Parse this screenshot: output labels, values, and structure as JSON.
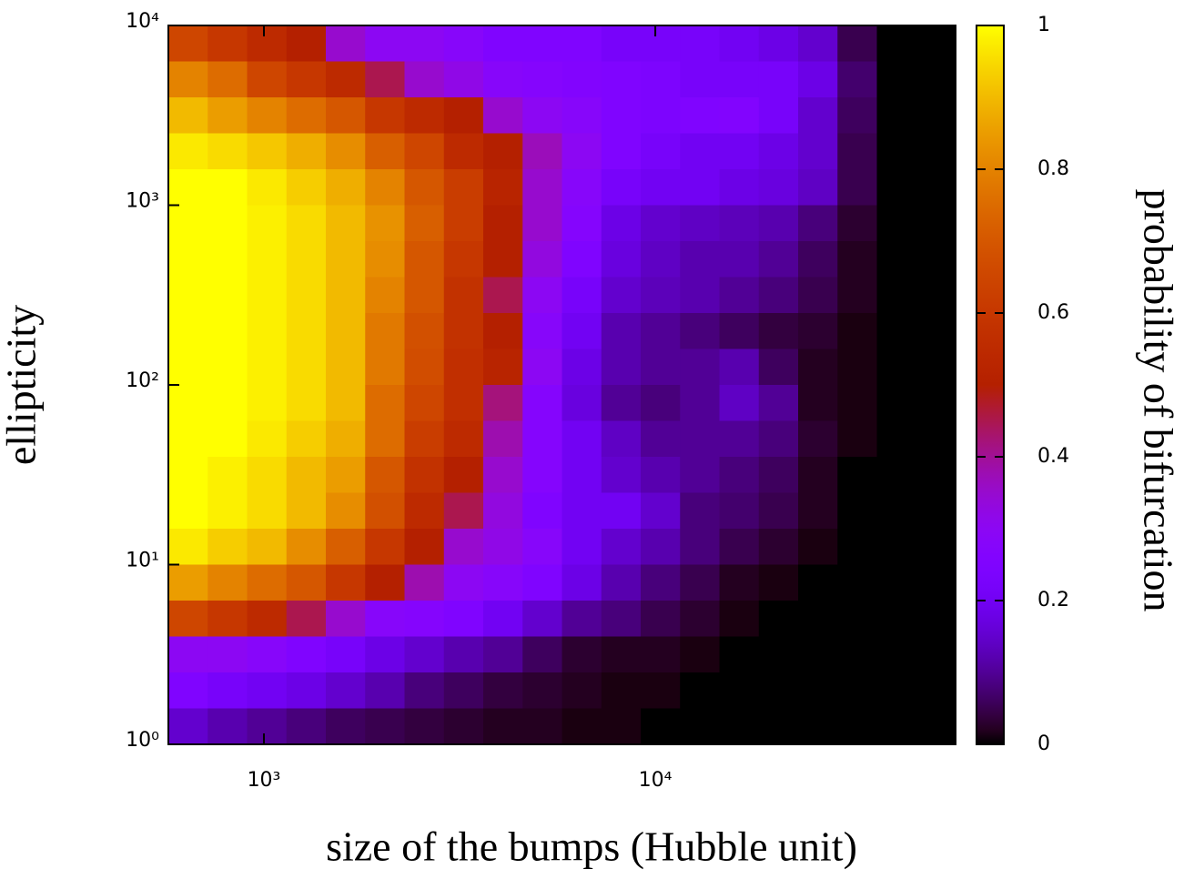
{
  "chart_data": {
    "type": "heatmap",
    "xlabel": "size of the bumps (Hubble unit)",
    "ylabel": "ellipticity",
    "colorbar_label": "probability of bifurcation",
    "xscale": "log",
    "yscale": "log",
    "xlim": [
      570,
      58500
    ],
    "ylim": [
      1,
      10000
    ],
    "xticks": [
      {
        "value": 1000,
        "label": "10³"
      },
      {
        "value": 10000,
        "label": "10⁴"
      }
    ],
    "yticks": [
      {
        "value": 1,
        "label": "10⁰"
      },
      {
        "value": 10,
        "label": "10¹"
      },
      {
        "value": 100,
        "label": "10²"
      },
      {
        "value": 1000,
        "label": "10³"
      },
      {
        "value": 10000,
        "label": "10⁴"
      }
    ],
    "colormap": "gnuplot",
    "zlim": [
      0,
      1
    ],
    "zticks": [
      0,
      {
        "value": 0.2,
        "label": "0.2"
      },
      {
        "value": 0.4,
        "label": "0.4"
      },
      {
        "value": 0.6,
        "label": "0.6"
      },
      {
        "value": 0.8,
        "label": "0.8"
      },
      1
    ],
    "z": [
      [
        0.65,
        0.6,
        0.55,
        0.5,
        0.35,
        0.3,
        0.3,
        0.28,
        0.25,
        0.25,
        0.25,
        0.22,
        0.22,
        0.22,
        0.2,
        0.18,
        0.15,
        0.05,
        0,
        0
      ],
      [
        0.8,
        0.75,
        0.65,
        0.6,
        0.55,
        0.45,
        0.35,
        0.32,
        0.28,
        0.27,
        0.26,
        0.25,
        0.24,
        0.22,
        0.22,
        0.22,
        0.18,
        0.07,
        0,
        0
      ],
      [
        0.9,
        0.85,
        0.8,
        0.75,
        0.7,
        0.6,
        0.55,
        0.5,
        0.35,
        0.3,
        0.28,
        0.25,
        0.24,
        0.25,
        0.26,
        0.22,
        0.15,
        0.06,
        0,
        0
      ],
      [
        0.97,
        0.95,
        0.92,
        0.88,
        0.82,
        0.72,
        0.65,
        0.55,
        0.5,
        0.37,
        0.3,
        0.25,
        0.22,
        0.2,
        0.2,
        0.18,
        0.15,
        0.05,
        0,
        0
      ],
      [
        1,
        1,
        0.97,
        0.93,
        0.88,
        0.8,
        0.7,
        0.62,
        0.52,
        0.35,
        0.28,
        0.22,
        0.2,
        0.2,
        0.18,
        0.17,
        0.14,
        0.05,
        0,
        0
      ],
      [
        1,
        1,
        0.98,
        0.95,
        0.9,
        0.83,
        0.72,
        0.62,
        0.5,
        0.35,
        0.27,
        0.18,
        0.15,
        0.14,
        0.13,
        0.12,
        0.08,
        0.03,
        0,
        0
      ],
      [
        1,
        1,
        0.98,
        0.95,
        0.9,
        0.82,
        0.7,
        0.6,
        0.5,
        0.33,
        0.25,
        0.17,
        0.14,
        0.12,
        0.12,
        0.1,
        0.06,
        0.02,
        0,
        0
      ],
      [
        1,
        1,
        0.98,
        0.95,
        0.9,
        0.8,
        0.7,
        0.58,
        0.45,
        0.3,
        0.22,
        0.15,
        0.13,
        0.12,
        0.1,
        0.08,
        0.05,
        0.02,
        0,
        0
      ],
      [
        1,
        1,
        0.98,
        0.95,
        0.9,
        0.78,
        0.68,
        0.58,
        0.5,
        0.28,
        0.2,
        0.12,
        0.1,
        0.08,
        0.06,
        0.04,
        0.03,
        0.01,
        0,
        0
      ],
      [
        1,
        1,
        0.98,
        0.95,
        0.9,
        0.78,
        0.67,
        0.57,
        0.52,
        0.3,
        0.18,
        0.12,
        0.1,
        0.1,
        0.12,
        0.06,
        0.02,
        0.01,
        0,
        0
      ],
      [
        1,
        1,
        0.98,
        0.95,
        0.9,
        0.75,
        0.65,
        0.57,
        0.42,
        0.27,
        0.17,
        0.1,
        0.08,
        0.1,
        0.14,
        0.1,
        0.02,
        0.01,
        0,
        0
      ],
      [
        1,
        1,
        0.97,
        0.93,
        0.88,
        0.75,
        0.62,
        0.55,
        0.38,
        0.27,
        0.2,
        0.14,
        0.1,
        0.1,
        0.1,
        0.08,
        0.03,
        0.01,
        0,
        0
      ],
      [
        1,
        0.98,
        0.95,
        0.9,
        0.85,
        0.7,
        0.58,
        0.5,
        0.35,
        0.27,
        0.2,
        0.15,
        0.12,
        0.1,
        0.08,
        0.06,
        0.02,
        0,
        0,
        0
      ],
      [
        1,
        0.98,
        0.95,
        0.9,
        0.82,
        0.68,
        0.55,
        0.45,
        0.33,
        0.25,
        0.2,
        0.2,
        0.15,
        0.08,
        0.07,
        0.05,
        0.02,
        0,
        0,
        0
      ],
      [
        0.97,
        0.93,
        0.9,
        0.82,
        0.72,
        0.6,
        0.5,
        0.35,
        0.32,
        0.28,
        0.2,
        0.15,
        0.12,
        0.08,
        0.05,
        0.03,
        0.01,
        0,
        0,
        0
      ],
      [
        0.85,
        0.8,
        0.75,
        0.7,
        0.6,
        0.5,
        0.38,
        0.3,
        0.28,
        0.25,
        0.18,
        0.12,
        0.08,
        0.05,
        0.02,
        0.01,
        0,
        0,
        0,
        0
      ],
      [
        0.65,
        0.6,
        0.55,
        0.45,
        0.35,
        0.28,
        0.27,
        0.25,
        0.2,
        0.15,
        0.1,
        0.08,
        0.05,
        0.03,
        0.01,
        0,
        0,
        0,
        0,
        0
      ],
      [
        0.3,
        0.3,
        0.28,
        0.25,
        0.22,
        0.18,
        0.15,
        0.12,
        0.1,
        0.06,
        0.03,
        0.02,
        0.02,
        0.01,
        0,
        0,
        0,
        0,
        0,
        0
      ],
      [
        0.25,
        0.22,
        0.2,
        0.18,
        0.15,
        0.12,
        0.08,
        0.06,
        0.04,
        0.03,
        0.02,
        0.01,
        0.01,
        0,
        0,
        0,
        0,
        0,
        0,
        0
      ],
      [
        0.15,
        0.12,
        0.1,
        0.08,
        0.06,
        0.05,
        0.04,
        0.03,
        0.02,
        0.02,
        0.01,
        0.01,
        0,
        0,
        0,
        0,
        0,
        0,
        0,
        0
      ]
    ]
  }
}
